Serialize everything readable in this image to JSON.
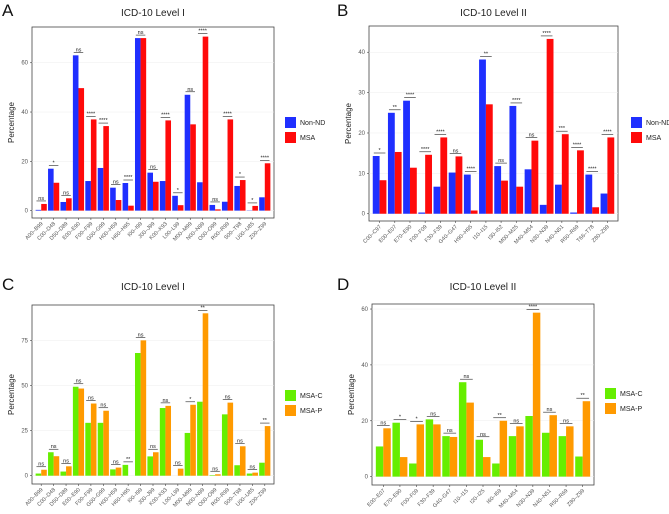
{
  "chart_data": [
    {
      "panel": "A",
      "type": "bar",
      "title": "ICD-10 Level I",
      "xlabel": "",
      "ylabel": "Percentage",
      "ylim": [
        -3,
        74.5
      ],
      "yticks": [
        0,
        20,
        40,
        60
      ],
      "grid": true,
      "legend_position": "right",
      "categories": [
        "A00–B99",
        "C00–D48",
        "D50–D89",
        "E00–E90",
        "F00–F99",
        "G00–G99",
        "H00–H59",
        "H60–H95",
        "I00–I99",
        "J00–J99",
        "K00–K93",
        "L00–L99",
        "M00–M99",
        "N00–N99",
        "O00–O99",
        "R00–R99",
        "S00–T98",
        "U00–U85",
        "Z00–Z99"
      ],
      "series": [
        {
          "name": "Non-ND",
          "color": "#1f2fff",
          "values": [
            0.3,
            17,
            3.5,
            63,
            12,
            17.3,
            9.3,
            11.2,
            70,
            15.4,
            12,
            6,
            47,
            11.5,
            2.3,
            3.6,
            10,
            0.1,
            5.4
          ]
        },
        {
          "name": "MSA",
          "color": "#ff0a0a",
          "values": [
            2.7,
            11.3,
            5,
            49.7,
            37,
            34.3,
            4.3,
            2,
            70,
            11.7,
            36.6,
            2.2,
            35,
            70.6,
            0.5,
            37,
            12.4,
            1.9,
            19.2
          ]
        }
      ],
      "significance": [
        "ns",
        "*",
        "ns",
        "ns",
        "****",
        "****",
        "ns",
        "****",
        "ns",
        "ns",
        "****",
        "*",
        "ns",
        "****",
        "ns",
        "****",
        "*",
        "*",
        "****"
      ]
    },
    {
      "panel": "B",
      "type": "bar",
      "title": "ICD-10 Level II",
      "xlabel": "",
      "ylabel": "Percentage",
      "ylim": [
        -1.8,
        46.5
      ],
      "yticks": [
        0,
        10,
        20,
        30,
        40
      ],
      "grid": true,
      "legend_position": "right",
      "categories": [
        "C00–C97",
        "E00–E07",
        "E70–E90",
        "F00–F09",
        "F30–F39",
        "G40–G47",
        "H90–H95",
        "I10–I15",
        "I30–I52",
        "M00–M25",
        "M40–M54",
        "N30–N39",
        "N40–N51",
        "R50–R69",
        "T66–T78",
        "Z80–Z99"
      ],
      "series": [
        {
          "name": "Non-ND",
          "color": "#1f2fff",
          "values": [
            14.3,
            25,
            28,
            0.3,
            6.7,
            10.2,
            9.7,
            38.2,
            11.8,
            26.7,
            11,
            2.2,
            7.2,
            0.3,
            9.7,
            5
          ]
        },
        {
          "name": "MSA",
          "color": "#ff0a0a",
          "values": [
            8.3,
            15.3,
            11.4,
            14.6,
            18.9,
            14.2,
            0.8,
            27.1,
            8.2,
            6.7,
            18.1,
            43.3,
            19.7,
            15.7,
            1.6,
            18.9
          ]
        }
      ],
      "significance": [
        "*",
        "**",
        "****",
        "****",
        "****",
        "ns",
        "****",
        "**",
        "ns",
        "****",
        "ns",
        "****",
        "***",
        "****",
        "****",
        "****"
      ]
    },
    {
      "panel": "C",
      "type": "bar",
      "title": "ICD-10 Level I",
      "xlabel": "",
      "ylabel": "Percentage",
      "ylim": [
        -4.6,
        94.6
      ],
      "yticks": [
        0,
        25,
        50,
        75
      ],
      "grid": true,
      "legend_position": "right",
      "categories": [
        "A00–B99",
        "C00–D48",
        "D50–D89",
        "E00–E90",
        "F00–F99",
        "G00–G99",
        "H00–H59",
        "H60–H95",
        "I00–I99",
        "J00–J99",
        "K00–K93",
        "L00–L99",
        "M00–M99",
        "N00–N99",
        "O00–O99",
        "R00–R99",
        "S00–T98",
        "U00–U85",
        "Z00–Z99"
      ],
      "series": [
        {
          "name": "MSA-C",
          "color": "#66ee00",
          "values": [
            1.2,
            13,
            2.3,
            49.3,
            29.3,
            29.3,
            3.5,
            6,
            68,
            10.7,
            37.5,
            0,
            23.7,
            41,
            0.3,
            34,
            5.8,
            1.2,
            7.2
          ]
        },
        {
          "name": "MSA-P",
          "color": "#ff9a00",
          "values": [
            3.3,
            10.8,
            5.2,
            48.3,
            40,
            36,
            4.5,
            0,
            75,
            13,
            38.7,
            3.9,
            39.3,
            90,
            0.8,
            40.5,
            16.3,
            1.7,
            27.5
          ]
        }
      ],
      "significance": [
        "ns",
        "ns",
        "ns",
        "ns",
        "ns",
        "ns",
        "ns",
        "**",
        "ns",
        "ns",
        "ns",
        "ns",
        "*",
        "**",
        "ns",
        "ns",
        "ns",
        "ns",
        "**"
      ]
    },
    {
      "panel": "D",
      "type": "bar",
      "title": "ICD-10 Level II",
      "xlabel": "",
      "ylabel": "Percentage",
      "ylim": [
        -3,
        61.8
      ],
      "yticks": [
        0,
        20,
        40,
        60
      ],
      "grid": true,
      "legend_position": "right",
      "categories": [
        "E00–E07",
        "E70–E90",
        "F00–F09",
        "F30–F39",
        "G40–G47",
        "I10–I15",
        "I20–I25",
        "I60–I69",
        "M40–M54",
        "N30–N39",
        "N40–N51",
        "R50–R69",
        "Z80–Z99"
      ],
      "series": [
        {
          "name": "MSA-C",
          "color": "#66ee00",
          "values": [
            10.8,
            19.3,
            4.7,
            20.5,
            14.5,
            33.8,
            13.2,
            4.7,
            14.5,
            21.7,
            15.7,
            14.5,
            7.2
          ]
        },
        {
          "name": "MSA-P",
          "color": "#ff9a00",
          "values": [
            17.3,
            7,
            18.7,
            18.7,
            14.2,
            26.5,
            7,
            20,
            18,
            58.7,
            22,
            18,
            27
          ]
        }
      ],
      "significance": [
        "ns",
        "*",
        "*",
        "ns",
        "ns",
        "ns",
        "ns",
        "**",
        "ns",
        "****",
        "ns",
        "ns",
        "**"
      ]
    }
  ]
}
